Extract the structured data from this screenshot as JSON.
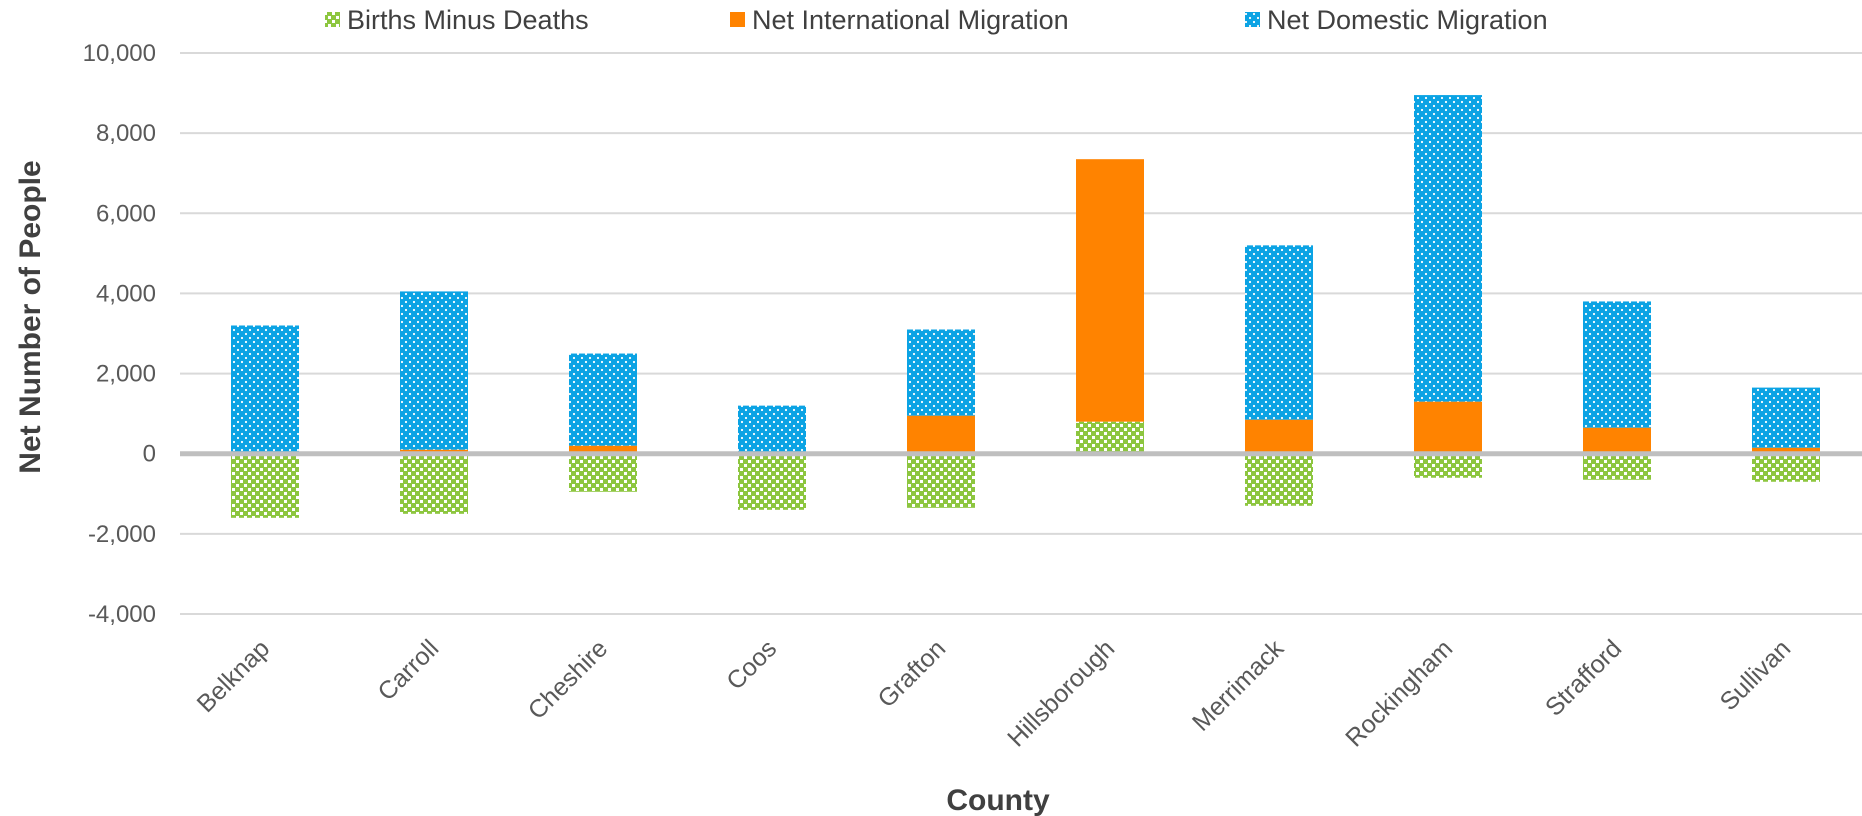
{
  "chart_data": {
    "type": "bar",
    "stacked": true,
    "xlabel": "County",
    "ylabel": "Net Number of People",
    "ylim": [
      -4000,
      10000
    ],
    "yticks": [
      -4000,
      -2000,
      0,
      2000,
      4000,
      6000,
      8000,
      10000
    ],
    "grid": true,
    "legend_position": "top",
    "categories": [
      "Belknap",
      "Carroll",
      "Cheshire",
      "Coos",
      "Grafton",
      "Hillsborough",
      "Merrimack",
      "Rockingham",
      "Strafford",
      "Sullivan"
    ],
    "series": [
      {
        "name": "Births Minus Deaths",
        "color": "#8DC63F",
        "pattern": "dotted-hatch",
        "values": [
          -1600,
          -1500,
          -950,
          -1400,
          -1350,
          800,
          -1300,
          -600,
          -650,
          -700
        ]
      },
      {
        "name": "Net International Migration",
        "color": "#FF8300",
        "pattern": "solid",
        "values": [
          50,
          100,
          200,
          50,
          950,
          6550,
          850,
          1300,
          650,
          150
        ]
      },
      {
        "name": "Net Domestic Migration",
        "color": "#0BA3E4",
        "pattern": "dotted",
        "values": [
          3150,
          3950,
          2300,
          1150,
          2150,
          0,
          4350,
          7650,
          3150,
          1500
        ]
      }
    ]
  }
}
